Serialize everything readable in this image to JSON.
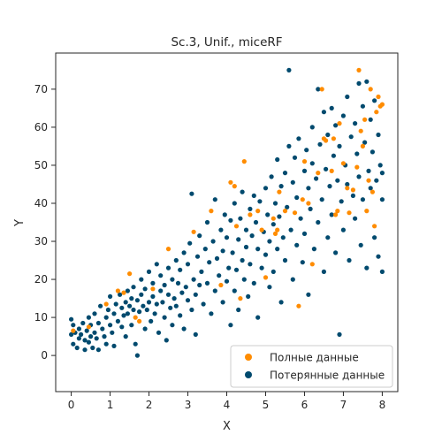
{
  "chart_data": {
    "type": "scatter",
    "title": "Sc.3, Unif., miceRF",
    "xlabel": "X",
    "ylabel": "Y",
    "xlim": [
      -0.4,
      8.4
    ],
    "ylim": [
      -9.5,
      79.5
    ],
    "xticks": [
      "0",
      "1",
      "2",
      "3",
      "4",
      "5",
      "6",
      "7",
      "8"
    ],
    "yticks": [
      "0",
      "10",
      "20",
      "30",
      "40",
      "50",
      "60",
      "70"
    ],
    "legend_position": "lower-right",
    "series": [
      {
        "name": "Полные данные",
        "color": "#ff8c00",
        "points": [
          [
            0.05,
            6.5
          ],
          [
            0.45,
            7.5
          ],
          [
            0.9,
            13.5
          ],
          [
            1.2,
            17
          ],
          [
            1.35,
            16.5
          ],
          [
            1.5,
            21.5
          ],
          [
            1.65,
            10
          ],
          [
            1.75,
            9
          ],
          [
            2.1,
            17.5
          ],
          [
            2.5,
            28
          ],
          [
            3.15,
            32.5
          ],
          [
            3.6,
            38
          ],
          [
            3.85,
            18.5
          ],
          [
            4.1,
            45.5
          ],
          [
            4.2,
            44.5
          ],
          [
            4.25,
            34
          ],
          [
            4.35,
            15
          ],
          [
            4.45,
            51
          ],
          [
            4.6,
            37
          ],
          [
            4.8,
            38
          ],
          [
            4.9,
            33
          ],
          [
            5.0,
            20.5
          ],
          [
            5.2,
            36
          ],
          [
            5.25,
            32
          ],
          [
            5.3,
            33
          ],
          [
            5.35,
            43
          ],
          [
            5.5,
            38
          ],
          [
            5.75,
            37.5
          ],
          [
            5.85,
            13
          ],
          [
            5.95,
            41
          ],
          [
            6.0,
            51
          ],
          [
            6.1,
            40
          ],
          [
            6.2,
            24
          ],
          [
            6.35,
            48
          ],
          [
            6.45,
            70
          ],
          [
            6.5,
            57
          ],
          [
            6.55,
            56.5
          ],
          [
            6.7,
            48.5
          ],
          [
            6.75,
            57
          ],
          [
            6.8,
            37
          ],
          [
            6.85,
            38
          ],
          [
            6.9,
            61
          ],
          [
            7.0,
            50.5
          ],
          [
            7.1,
            44
          ],
          [
            7.15,
            37.5
          ],
          [
            7.25,
            43.5
          ],
          [
            7.35,
            49.5
          ],
          [
            7.4,
            75
          ],
          [
            7.45,
            59
          ],
          [
            7.5,
            55
          ],
          [
            7.55,
            62
          ],
          [
            7.6,
            38
          ],
          [
            7.65,
            46
          ],
          [
            7.7,
            70
          ],
          [
            7.75,
            43
          ],
          [
            7.8,
            34
          ],
          [
            7.85,
            64
          ],
          [
            7.9,
            68
          ],
          [
            7.95,
            65.5
          ],
          [
            8.0,
            66
          ]
        ]
      },
      {
        "name": "Потерянные данные",
        "color": "#004a6e",
        "points": [
          [
            0.0,
            9.5
          ],
          [
            0.0,
            5.5
          ],
          [
            0.05,
            3
          ],
          [
            0.05,
            8
          ],
          [
            0.1,
            6
          ],
          [
            0.15,
            2
          ],
          [
            0.2,
            4.5
          ],
          [
            0.2,
            7
          ],
          [
            0.25,
            5.5
          ],
          [
            0.3,
            8.5
          ],
          [
            0.35,
            1.5
          ],
          [
            0.35,
            4
          ],
          [
            0.4,
            6.5
          ],
          [
            0.45,
            10
          ],
          [
            0.45,
            3.5
          ],
          [
            0.5,
            5
          ],
          [
            0.5,
            8
          ],
          [
            0.55,
            2
          ],
          [
            0.6,
            6
          ],
          [
            0.6,
            11
          ],
          [
            0.65,
            4.5
          ],
          [
            0.7,
            8.5
          ],
          [
            0.7,
            1.5
          ],
          [
            0.75,
            13
          ],
          [
            0.8,
            7
          ],
          [
            0.85,
            5
          ],
          [
            0.9,
            10
          ],
          [
            0.9,
            3
          ],
          [
            0.95,
            12
          ],
          [
            1.0,
            8
          ],
          [
            1.0,
            15.5
          ],
          [
            1.05,
            6
          ],
          [
            1.1,
            11
          ],
          [
            1.1,
            2.5
          ],
          [
            1.15,
            13.5
          ],
          [
            1.2,
            9
          ],
          [
            1.25,
            16
          ],
          [
            1.3,
            7.5
          ],
          [
            1.3,
            12.5
          ],
          [
            1.35,
            10.5
          ],
          [
            1.4,
            14
          ],
          [
            1.4,
            5
          ],
          [
            1.45,
            17
          ],
          [
            1.45,
            11
          ],
          [
            1.5,
            13
          ],
          [
            1.55,
            8
          ],
          [
            1.55,
            15
          ],
          [
            1.6,
            12
          ],
          [
            1.6,
            18
          ],
          [
            1.65,
            3
          ],
          [
            1.7,
            14.5
          ],
          [
            1.7,
            0
          ],
          [
            1.75,
            11.5
          ],
          [
            1.8,
            20
          ],
          [
            1.8,
            16
          ],
          [
            1.85,
            13
          ],
          [
            1.9,
            7
          ],
          [
            1.9,
            17.5
          ],
          [
            1.95,
            12
          ],
          [
            2.0,
            14
          ],
          [
            2.0,
            22
          ],
          [
            2.05,
            9
          ],
          [
            2.1,
            15.5
          ],
          [
            2.1,
            19
          ],
          [
            2.15,
            11
          ],
          [
            2.2,
            24
          ],
          [
            2.2,
            13.5
          ],
          [
            2.25,
            6
          ],
          [
            2.3,
            17
          ],
          [
            2.3,
            21
          ],
          [
            2.35,
            14
          ],
          [
            2.4,
            10
          ],
          [
            2.4,
            18.5
          ],
          [
            2.45,
            4
          ],
          [
            2.5,
            16
          ],
          [
            2.5,
            23
          ],
          [
            2.55,
            12.5
          ],
          [
            2.6,
            20
          ],
          [
            2.6,
            8
          ],
          [
            2.65,
            15
          ],
          [
            2.7,
            25
          ],
          [
            2.7,
            13
          ],
          [
            2.75,
            19
          ],
          [
            2.8,
            10.5
          ],
          [
            2.8,
            22.5
          ],
          [
            2.85,
            16.5
          ],
          [
            2.9,
            27
          ],
          [
            2.9,
            7
          ],
          [
            2.95,
            18
          ],
          [
            3.0,
            14.5
          ],
          [
            3.0,
            24
          ],
          [
            3.05,
            29.5
          ],
          [
            3.1,
            12
          ],
          [
            3.1,
            42.5
          ],
          [
            3.15,
            20
          ],
          [
            3.2,
            16
          ],
          [
            3.2,
            5.5
          ],
          [
            3.25,
            26
          ],
          [
            3.3,
            31.5
          ],
          [
            3.3,
            18.5
          ],
          [
            3.35,
            22
          ],
          [
            3.4,
            13.5
          ],
          [
            3.45,
            28
          ],
          [
            3.5,
            35
          ],
          [
            3.5,
            19
          ],
          [
            3.55,
            24.5
          ],
          [
            3.6,
            11
          ],
          [
            3.65,
            30
          ],
          [
            3.7,
            17
          ],
          [
            3.7,
            41
          ],
          [
            3.75,
            25.5
          ],
          [
            3.8,
            21
          ],
          [
            3.85,
            33
          ],
          [
            3.9,
            14
          ],
          [
            3.9,
            27.5
          ],
          [
            3.95,
            37
          ],
          [
            4.0,
            19.5
          ],
          [
            4.0,
            31
          ],
          [
            4.05,
            23
          ],
          [
            4.1,
            8
          ],
          [
            4.1,
            35.5
          ],
          [
            4.15,
            27
          ],
          [
            4.2,
            17
          ],
          [
            4.2,
            40
          ],
          [
            4.25,
            22.5
          ],
          [
            4.3,
            30.5
          ],
          [
            4.3,
            12
          ],
          [
            4.35,
            36
          ],
          [
            4.4,
            25
          ],
          [
            4.4,
            43
          ],
          [
            4.45,
            20
          ],
          [
            4.5,
            33
          ],
          [
            4.5,
            28.5
          ],
          [
            4.55,
            15.5
          ],
          [
            4.6,
            38.5
          ],
          [
            4.6,
            24
          ],
          [
            4.65,
            31.5
          ],
          [
            4.7,
            42
          ],
          [
            4.7,
            19
          ],
          [
            4.75,
            35
          ],
          [
            4.8,
            28
          ],
          [
            4.8,
            10
          ],
          [
            4.85,
            40.5
          ],
          [
            4.9,
            23
          ],
          [
            4.95,
            32.5
          ],
          [
            5.0,
            44
          ],
          [
            5.0,
            26.5
          ],
          [
            5.05,
            37
          ],
          [
            5.1,
            18
          ],
          [
            5.1,
            30
          ],
          [
            5.15,
            47
          ],
          [
            5.2,
            34.5
          ],
          [
            5.2,
            22
          ],
          [
            5.25,
            40
          ],
          [
            5.3,
            28
          ],
          [
            5.3,
            51.5
          ],
          [
            5.35,
            36.5
          ],
          [
            5.4,
            14
          ],
          [
            5.4,
            44.5
          ],
          [
            5.45,
            31
          ],
          [
            5.5,
            48
          ],
          [
            5.5,
            25
          ],
          [
            5.55,
            39
          ],
          [
            5.6,
            55
          ],
          [
            5.6,
            75
          ],
          [
            5.65,
            33
          ],
          [
            5.7,
            45.5
          ],
          [
            5.7,
            20
          ],
          [
            5.75,
            52
          ],
          [
            5.8,
            29
          ],
          [
            5.8,
            41.5
          ],
          [
            5.85,
            57
          ],
          [
            5.9,
            36
          ],
          [
            5.95,
            24.5
          ],
          [
            6.0,
            48.5
          ],
          [
            6.0,
            32
          ],
          [
            6.05,
            54
          ],
          [
            6.1,
            44
          ],
          [
            6.1,
            16
          ],
          [
            6.15,
            38.5
          ],
          [
            6.2,
            60
          ],
          [
            6.2,
            50.5
          ],
          [
            6.25,
            28
          ],
          [
            6.3,
            46.5
          ],
          [
            6.35,
            70
          ],
          [
            6.35,
            35
          ],
          [
            6.4,
            55.5
          ],
          [
            6.45,
            41
          ],
          [
            6.5,
            22
          ],
          [
            6.5,
            64
          ],
          [
            6.55,
            49
          ],
          [
            6.6,
            31
          ],
          [
            6.6,
            58
          ],
          [
            6.65,
            44.5
          ],
          [
            6.7,
            65
          ],
          [
            6.7,
            37
          ],
          [
            6.75,
            52.5
          ],
          [
            6.8,
            27
          ],
          [
            6.8,
            60.5
          ],
          [
            6.85,
            46
          ],
          [
            6.9,
            5.5
          ],
          [
            6.9,
            55
          ],
          [
            6.95,
            40.5
          ],
          [
            7.0,
            63
          ],
          [
            7.0,
            33
          ],
          [
            7.05,
            50
          ],
          [
            7.1,
            45
          ],
          [
            7.1,
            68
          ],
          [
            7.15,
            25
          ],
          [
            7.2,
            57.5
          ],
          [
            7.25,
            42
          ],
          [
            7.3,
            61
          ],
          [
            7.3,
            36
          ],
          [
            7.35,
            53
          ],
          [
            7.4,
            71.5
          ],
          [
            7.4,
            47
          ],
          [
            7.45,
            29
          ],
          [
            7.5,
            65.5
          ],
          [
            7.5,
            41
          ],
          [
            7.55,
            56
          ],
          [
            7.6,
            72
          ],
          [
            7.6,
            23
          ],
          [
            7.65,
            48.5
          ],
          [
            7.7,
            62
          ],
          [
            7.7,
            44
          ],
          [
            7.75,
            53.5
          ],
          [
            7.8,
            67
          ],
          [
            7.8,
            31
          ],
          [
            7.85,
            46
          ],
          [
            7.9,
            58
          ],
          [
            7.9,
            26
          ],
          [
            7.95,
            50
          ],
          [
            8.0,
            48
          ],
          [
            8.0,
            41
          ],
          [
            8.0,
            22
          ]
        ]
      }
    ]
  }
}
